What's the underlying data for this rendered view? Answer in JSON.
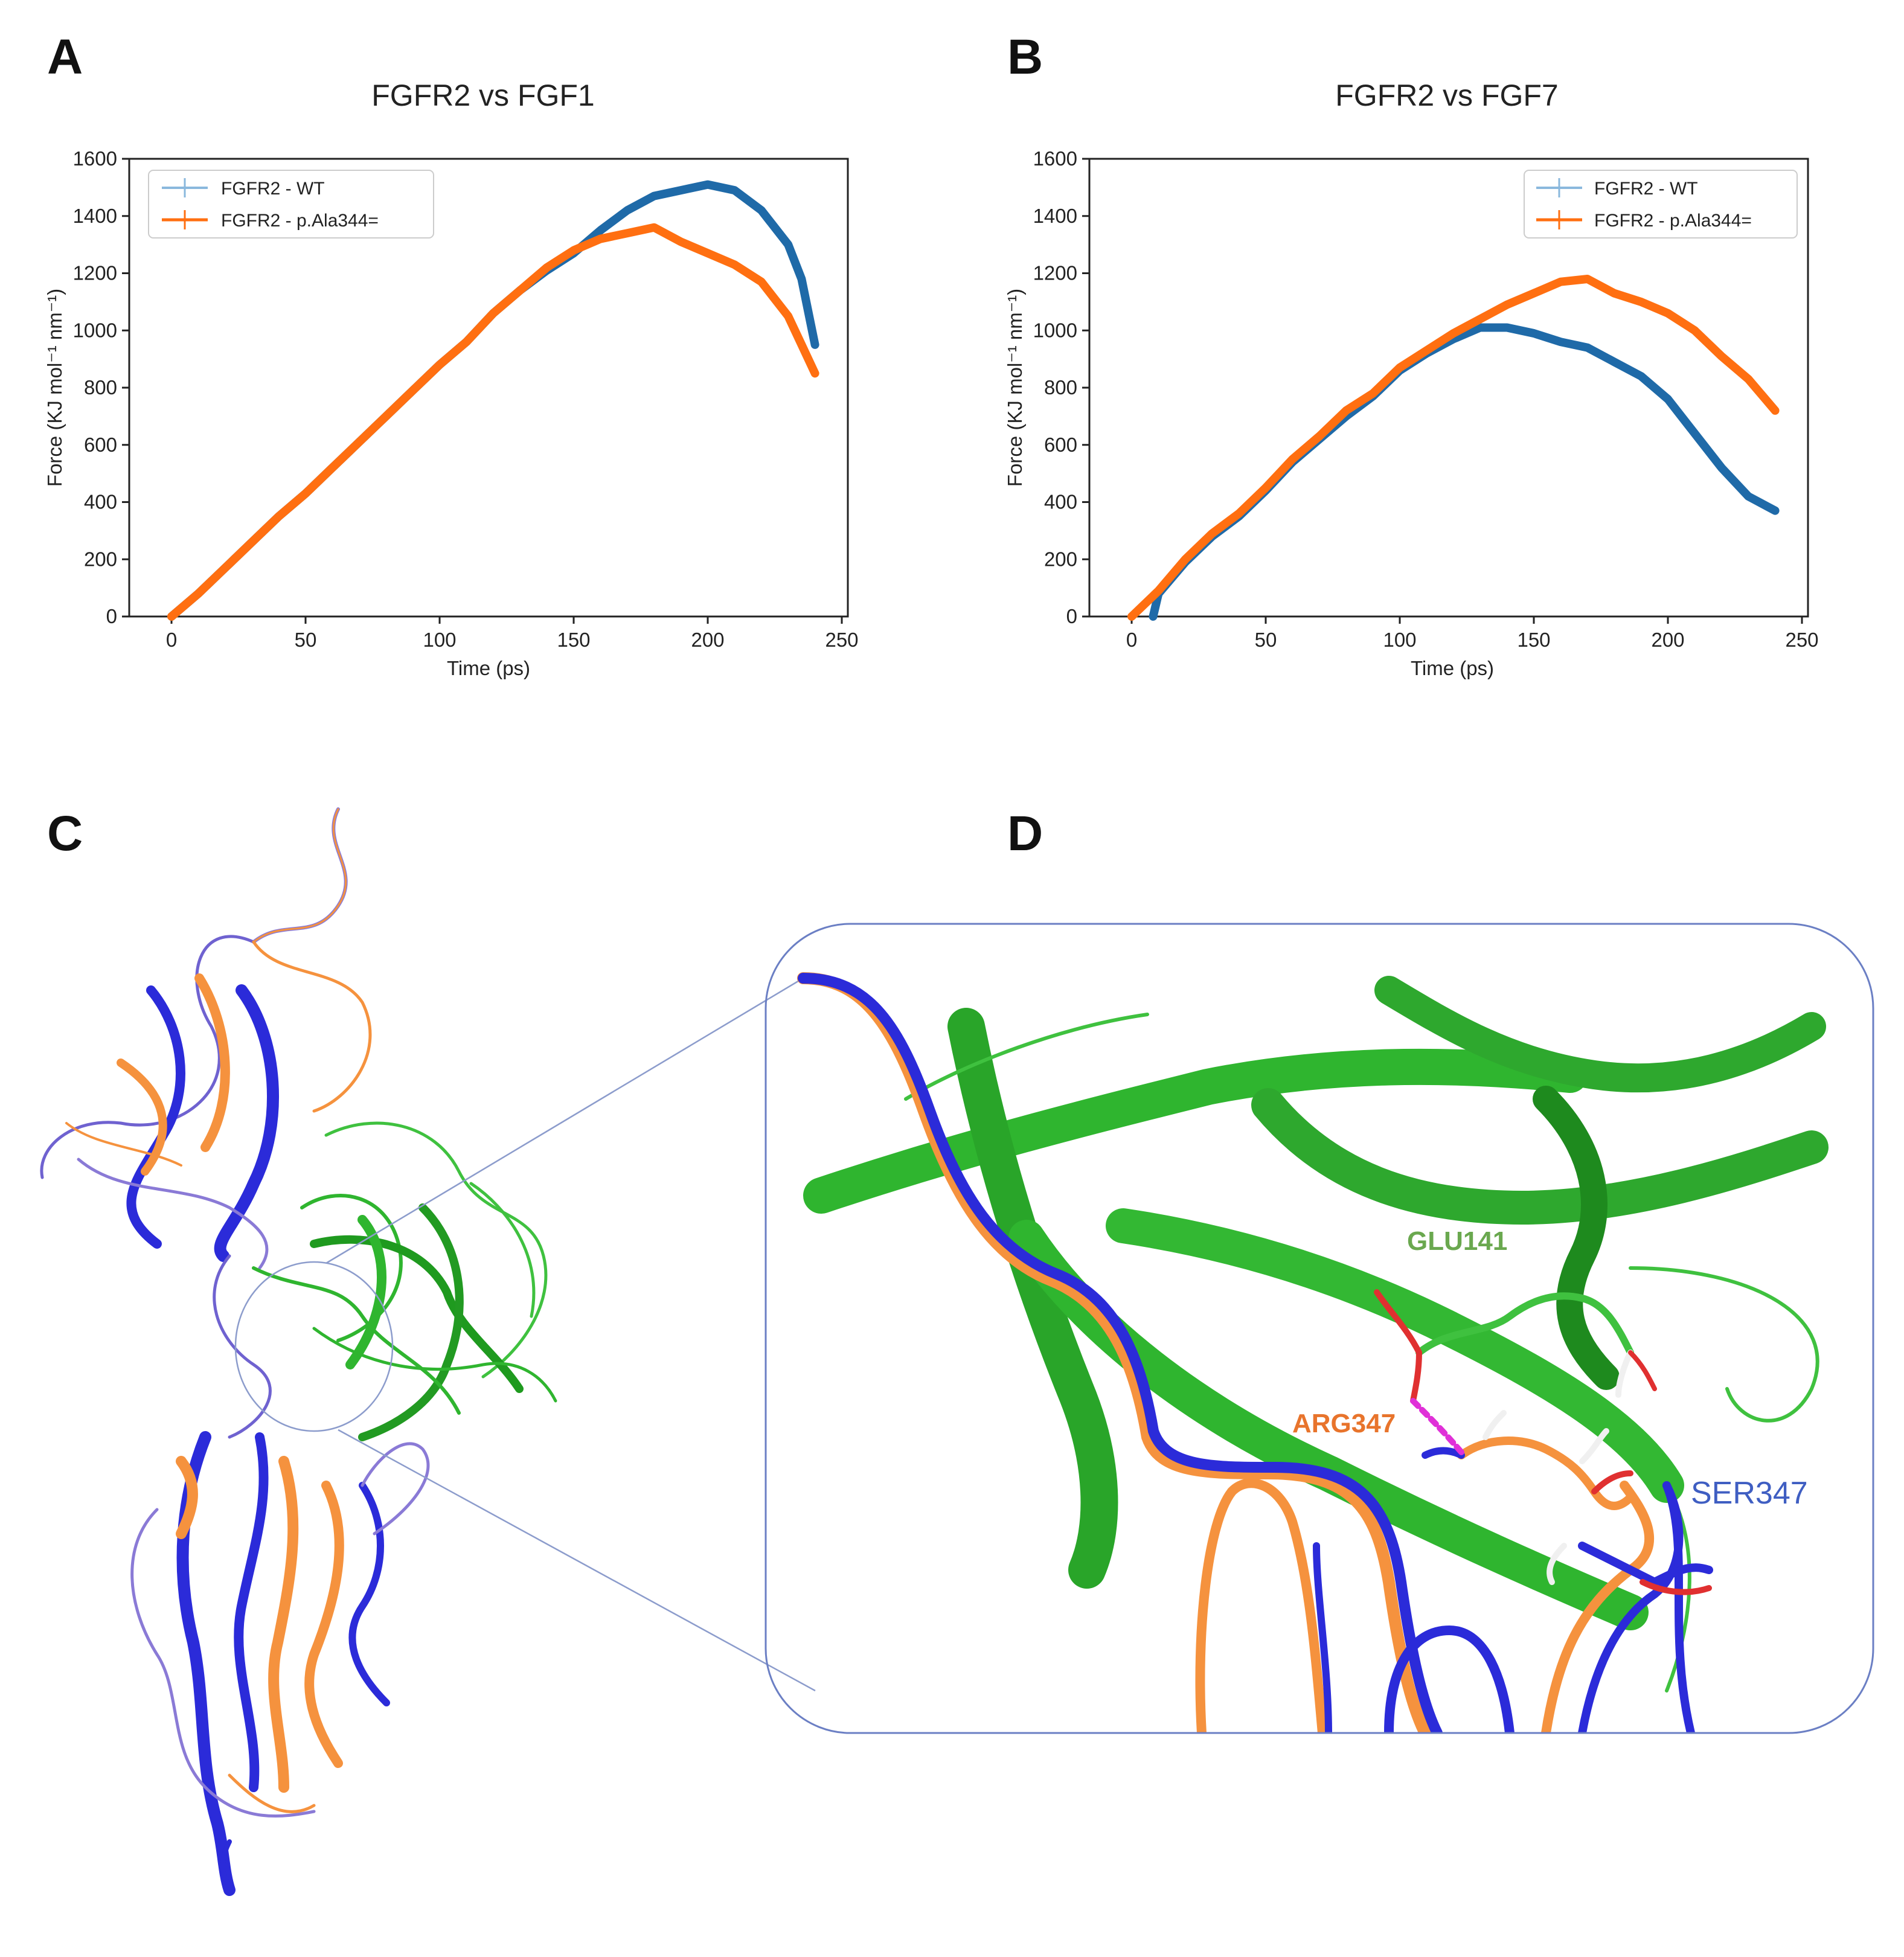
{
  "panels": {
    "a": "A",
    "b": "B",
    "c": "C",
    "d": "D"
  },
  "colors": {
    "wt": "#1f6aa8",
    "mut": "#ff6f11",
    "fgf": "#2fb52f",
    "fgfr_blue": "#2b2bd9",
    "fgfr_orange": "#f5923e",
    "glu_label": "#6aa84f",
    "arg_label": "#e8742c",
    "ser_label": "#3f5ec2"
  },
  "chart_data": [
    {
      "type": "line",
      "title": "FGFR2 vs FGF1",
      "xlabel": "Time (ps)",
      "ylabel": "Force (KJ mol⁻¹ nm⁻¹)",
      "xlim": [
        0,
        250
      ],
      "ylim": [
        0,
        1600
      ],
      "xticks": [
        "0",
        "50",
        "100",
        "150",
        "200",
        "250"
      ],
      "yticks": [
        "0",
        "200",
        "400",
        "600",
        "800",
        "1000",
        "1200",
        "1400",
        "1600"
      ],
      "legend_position": "top-left",
      "series": [
        {
          "name": "FGFR2 - WT",
          "x": [
            0,
            10,
            20,
            30,
            40,
            50,
            60,
            70,
            80,
            90,
            100,
            110,
            120,
            130,
            140,
            150,
            160,
            170,
            180,
            190,
            200,
            210,
            220,
            230,
            235,
            240
          ],
          "y": [
            0,
            80,
            170,
            260,
            350,
            430,
            520,
            610,
            700,
            790,
            880,
            960,
            1060,
            1140,
            1210,
            1270,
            1350,
            1420,
            1470,
            1490,
            1510,
            1490,
            1420,
            1300,
            1180,
            950
          ]
        },
        {
          "name": "FGFR2 - p.Ala344=",
          "x": [
            0,
            10,
            20,
            30,
            40,
            50,
            60,
            70,
            80,
            90,
            100,
            110,
            120,
            130,
            140,
            150,
            160,
            170,
            180,
            190,
            200,
            210,
            220,
            230,
            235,
            240
          ],
          "y": [
            0,
            80,
            170,
            260,
            350,
            430,
            520,
            610,
            700,
            790,
            880,
            960,
            1060,
            1140,
            1220,
            1280,
            1320,
            1340,
            1360,
            1310,
            1270,
            1230,
            1170,
            1050,
            950,
            850
          ]
        }
      ]
    },
    {
      "type": "line",
      "title": "FGFR2 vs FGF7",
      "xlabel": "Time (ps)",
      "ylabel": "Force (KJ mol⁻¹ nm⁻¹)",
      "xlim": [
        0,
        250
      ],
      "ylim": [
        0,
        1600
      ],
      "xticks": [
        "0",
        "50",
        "100",
        "150",
        "200",
        "250"
      ],
      "yticks": [
        "0",
        "200",
        "400",
        "600",
        "800",
        "1000",
        "1200",
        "1400",
        "1600"
      ],
      "legend_position": "top-right",
      "series": [
        {
          "name": "FGFR2 - WT",
          "x": [
            8,
            10,
            20,
            30,
            40,
            50,
            60,
            70,
            80,
            90,
            100,
            110,
            120,
            130,
            140,
            150,
            160,
            170,
            180,
            190,
            200,
            210,
            220,
            230,
            240
          ],
          "y": [
            0,
            80,
            190,
            280,
            350,
            440,
            540,
            620,
            700,
            770,
            860,
            920,
            970,
            1010,
            1010,
            990,
            960,
            940,
            890,
            840,
            760,
            640,
            520,
            420,
            370
          ]
        },
        {
          "name": "FGFR2 - p.Ala344=",
          "x": [
            0,
            10,
            20,
            30,
            40,
            50,
            60,
            70,
            80,
            90,
            100,
            110,
            120,
            130,
            140,
            150,
            160,
            170,
            180,
            190,
            200,
            210,
            220,
            230,
            240
          ],
          "y": [
            0,
            90,
            200,
            290,
            360,
            450,
            550,
            630,
            720,
            780,
            870,
            930,
            990,
            1040,
            1090,
            1130,
            1170,
            1180,
            1130,
            1100,
            1060,
            1000,
            910,
            830,
            720
          ]
        }
      ]
    }
  ],
  "structure": {
    "labels": {
      "glu": "GLU141",
      "arg": "ARG347",
      "ser": "SER347"
    }
  }
}
